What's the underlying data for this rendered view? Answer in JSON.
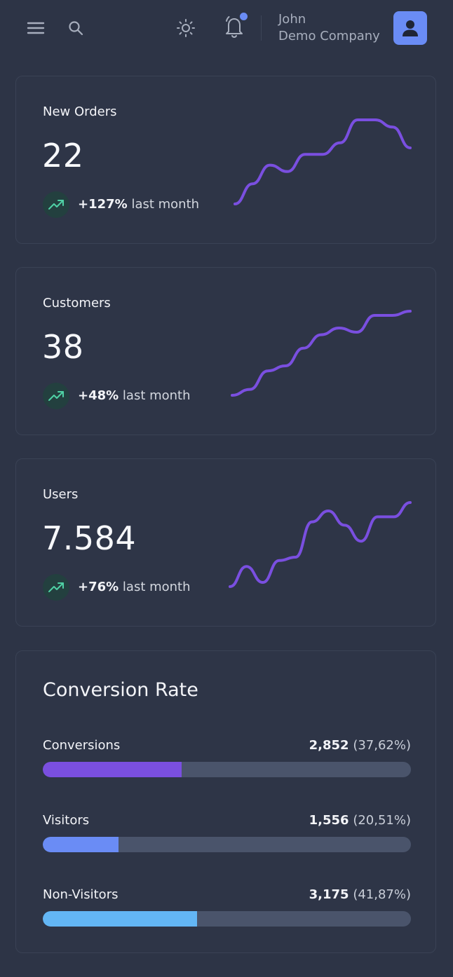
{
  "header": {
    "user_name": "John",
    "company": "Demo Company",
    "icons": [
      "menu-icon",
      "search-icon",
      "sun-icon",
      "bell-icon",
      "user-icon"
    ],
    "accent": "#6a8cf5"
  },
  "stats": [
    {
      "title": "New Orders",
      "value": "22",
      "change": "+127%",
      "period": "last month",
      "spark": [
        0,
        28,
        54,
        45,
        69,
        69,
        85,
        117,
        117,
        107,
        78
      ]
    },
    {
      "title": "Customers",
      "value": "38",
      "change": "+48%",
      "period": "last month",
      "spark": [
        0,
        7,
        29,
        35,
        56,
        72,
        80,
        75,
        95,
        95,
        100
      ]
    },
    {
      "title": "Users",
      "value": "7.584",
      "change": "+76%",
      "period": "last month",
      "spark": [
        0,
        24,
        5,
        31,
        35,
        77,
        90,
        73,
        54,
        83,
        83,
        100
      ]
    }
  ],
  "conversion": {
    "title": "Conversion Rate",
    "rows": [
      {
        "label": "Conversions",
        "count": "2,852",
        "percent": "(37,62%)",
        "fraction": 0.3762,
        "color": "#7a4fe0"
      },
      {
        "label": "Visitors",
        "count": "1,556",
        "percent": "(20,51%)",
        "fraction": 0.2051,
        "color": "#6a8cf5"
      },
      {
        "label": "Non-Visitors",
        "count": "3,175",
        "percent": "(41,87%)",
        "fraction": 0.4187,
        "color": "#63b6f5"
      }
    ]
  },
  "colors": {
    "spark_line": "#7a4fe0",
    "trend_icon": "#4fd1a5"
  }
}
